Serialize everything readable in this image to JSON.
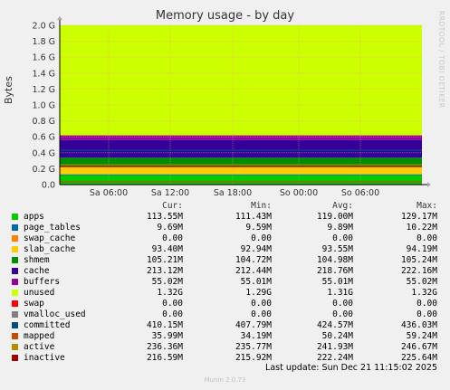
{
  "title": "Memory usage - by day",
  "watermark": "RRDTOOL / TOBI OETIKER",
  "footer": {
    "last_update": "Last update: Sun Dec 21 11:15:02 2025",
    "version": "Munin 2.0.73"
  },
  "legend_headers": {
    "cur": "Cur:",
    "min": "Min:",
    "avg": "Avg:",
    "max": "Max:"
  },
  "chart_data": {
    "type": "area",
    "title": "Memory usage - by day",
    "ylabel": "Bytes",
    "ylim": [
      0,
      2000000000
    ],
    "y_ticks": [
      "0.0",
      "0.2 G",
      "0.4 G",
      "0.6 G",
      "0.8 G",
      "1.0 G",
      "1.2 G",
      "1.4 G",
      "1.6 G",
      "1.8 G",
      "2.0 G"
    ],
    "x_ticks": [
      "Sa 06:00",
      "Sa 12:00",
      "Sa 18:00",
      "So 00:00",
      "So 06:00"
    ],
    "grid": true,
    "stacked": [
      "apps",
      "page_tables",
      "swap_cache",
      "slab_cache",
      "shmem",
      "cache",
      "buffers",
      "unused",
      "swap"
    ],
    "lines": [
      "vmalloc_used",
      "committed",
      "mapped",
      "active",
      "inactive"
    ],
    "series": [
      {
        "name": "apps",
        "color": "#00cc00",
        "cur": "113.55M",
        "min": "111.43M",
        "avg": "119.00M",
        "max": "129.17M",
        "value_mb": 113.55
      },
      {
        "name": "page_tables",
        "color": "#0066b3",
        "cur": "9.69M",
        "min": "9.59M",
        "avg": "9.89M",
        "max": "10.22M",
        "value_mb": 9.69
      },
      {
        "name": "swap_cache",
        "color": "#ff8000",
        "cur": "0.00",
        "min": "0.00",
        "avg": "0.00",
        "max": "0.00",
        "value_mb": 0
      },
      {
        "name": "slab_cache",
        "color": "#ffcc00",
        "cur": "93.40M",
        "min": "92.94M",
        "avg": "93.55M",
        "max": "94.19M",
        "value_mb": 93.4
      },
      {
        "name": "shmem",
        "color": "#008f00",
        "cur": "105.21M",
        "min": "104.72M",
        "avg": "104.98M",
        "max": "105.24M",
        "value_mb": 105.21
      },
      {
        "name": "cache",
        "color": "#330099",
        "cur": "213.12M",
        "min": "212.44M",
        "avg": "218.76M",
        "max": "222.16M",
        "value_mb": 213.12
      },
      {
        "name": "buffers",
        "color": "#990099",
        "cur": "55.02M",
        "min": "55.01M",
        "avg": "55.01M",
        "max": "55.02M",
        "value_mb": 55.02
      },
      {
        "name": "unused",
        "color": "#ccff00",
        "cur": "1.32G",
        "min": "1.29G",
        "avg": "1.31G",
        "max": "1.32G",
        "value_mb": 1320
      },
      {
        "name": "swap",
        "color": "#ff0000",
        "cur": "0.00",
        "min": "0.00",
        "avg": "0.00",
        "max": "0.00",
        "value_mb": 0
      },
      {
        "name": "vmalloc_used",
        "color": "#808080",
        "cur": "0.00",
        "min": "0.00",
        "avg": "0.00",
        "max": "0.00",
        "value_mb": 0
      },
      {
        "name": "committed",
        "color": "#004d80",
        "cur": "410.15M",
        "min": "407.79M",
        "avg": "424.57M",
        "max": "436.03M",
        "value_mb": 410.15
      },
      {
        "name": "mapped",
        "color": "#c24c00",
        "cur": "35.99M",
        "min": "34.19M",
        "avg": "50.24M",
        "max": "59.24M",
        "value_mb": 35.99
      },
      {
        "name": "active",
        "color": "#b38f00",
        "cur": "236.36M",
        "min": "235.77M",
        "avg": "241.93M",
        "max": "246.67M",
        "value_mb": 236.36
      },
      {
        "name": "inactive",
        "color": "#a30000",
        "cur": "216.59M",
        "min": "215.92M",
        "avg": "222.24M",
        "max": "225.64M",
        "value_mb": 216.59
      }
    ]
  }
}
